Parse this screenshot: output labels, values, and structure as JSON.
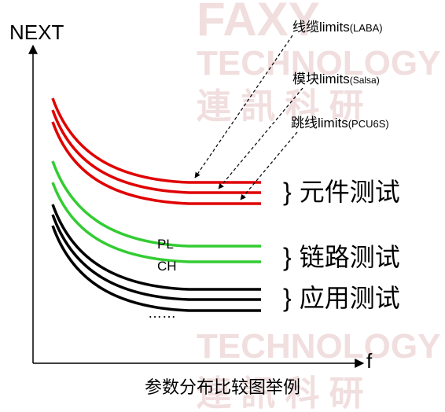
{
  "axes": {
    "y_label": "NEXT",
    "x_label": "f"
  },
  "watermark": {
    "brand": "FAXY",
    "line1": "TECHNOLOGY",
    "line2": "連 訊 科 研"
  },
  "annotations": [
    {
      "label": "线缆limits",
      "sub": "(LABA)"
    },
    {
      "label": "模块limits",
      "sub": "(Salsa)"
    },
    {
      "label": "跳线limits",
      "sub": "(PCU6S)"
    }
  ],
  "groups": [
    {
      "brace": "}",
      "label": "元件测试"
    },
    {
      "brace": "}",
      "label": "链路测试"
    },
    {
      "brace": "}",
      "label": "应用测试"
    }
  ],
  "curve_labels": {
    "pl": "PL",
    "ch": "CH",
    "ellipsis": "……"
  },
  "caption": "参数分布比较图举例"
}
